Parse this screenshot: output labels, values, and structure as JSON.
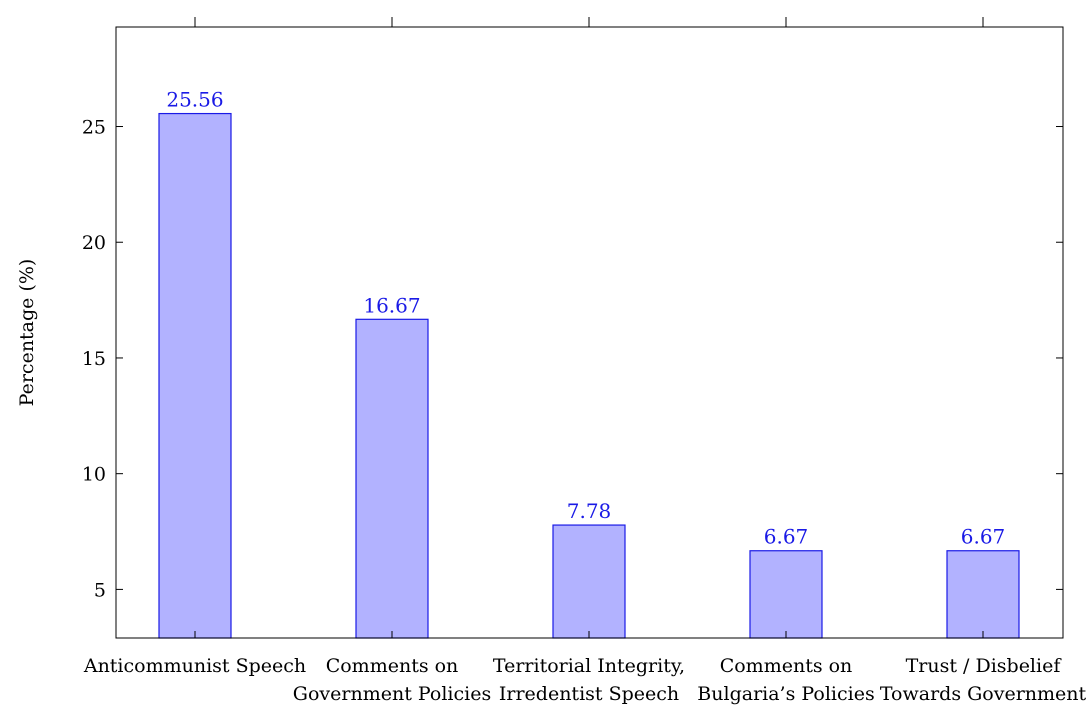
{
  "chart_data": {
    "type": "bar",
    "title": "",
    "xlabel": "",
    "ylabel": "Percentage (%)",
    "categories": [
      [
        "Anticommunist Speech"
      ],
      [
        "Comments on",
        "Government Policies"
      ],
      [
        "Territorial Integrity,",
        "Irredentist Speech"
      ],
      [
        "Comments on",
        "Bulgaria’s Policies"
      ],
      [
        "Trust / Disbelief",
        "Towards Government"
      ]
    ],
    "values": [
      25.56,
      16.67,
      7.78,
      6.67,
      6.67
    ],
    "data_labels": [
      "25.56",
      "16.67",
      "7.78",
      "6.67",
      "6.67"
    ],
    "yticks": [
      5,
      10,
      15,
      20,
      25
    ],
    "ylim": [
      2.9,
      29.3
    ],
    "grid": false,
    "legend": "none",
    "colors": {
      "bar_fill": "#b2b2ff",
      "bar_stroke": "#1a1ae6",
      "data_label": "#1a1ae6",
      "axis": "#000000"
    }
  }
}
